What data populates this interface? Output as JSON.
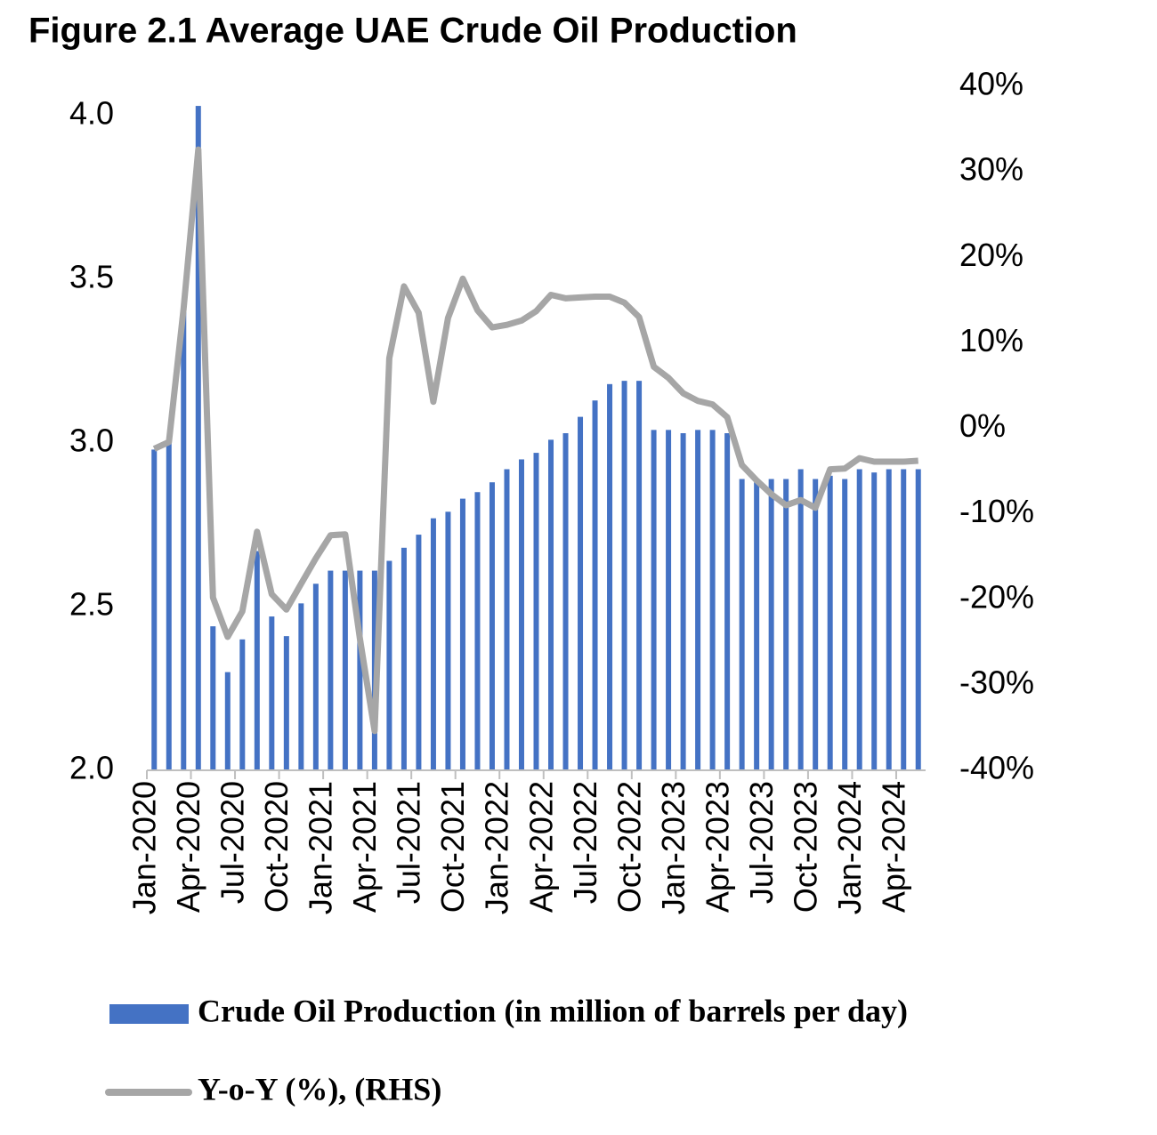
{
  "chart_data": {
    "type": "combo",
    "title": "Figure 2.1 Average UAE Crude Oil Production",
    "categories": [
      "Jan-2020",
      null,
      null,
      "Apr-2020",
      null,
      null,
      "Jul-2020",
      null,
      null,
      "Oct-2020",
      null,
      null,
      "Jan-2021",
      null,
      null,
      "Apr-2021",
      null,
      null,
      "Jul-2021",
      null,
      null,
      "Oct-2021",
      null,
      null,
      "Jan-2022",
      null,
      null,
      "Apr-2022",
      null,
      null,
      "Jul-2022",
      null,
      null,
      "Oct-2022",
      null,
      null,
      "Jan-2023",
      null,
      null,
      "Apr-2023",
      null,
      null,
      "Jul-2023",
      null,
      null,
      "Oct-2023",
      null,
      null,
      "Jan-2024",
      null,
      null,
      "Apr-2024",
      null
    ],
    "series": [
      {
        "name": "Crude Oil Production (in million of barrels per day)",
        "type": "bar",
        "color": "#4472c4",
        "values": [
          2.98,
          3.0,
          3.4,
          4.03,
          2.44,
          2.3,
          2.4,
          2.67,
          2.47,
          2.41,
          2.51,
          2.57,
          2.61,
          2.61,
          2.61,
          2.61,
          2.64,
          2.68,
          2.72,
          2.77,
          2.79,
          2.83,
          2.85,
          2.88,
          2.92,
          2.95,
          2.97,
          3.01,
          3.03,
          3.08,
          3.13,
          3.18,
          3.19,
          3.19,
          3.04,
          3.04,
          3.03,
          3.04,
          3.04,
          3.03,
          2.89,
          2.88,
          2.89,
          2.89,
          2.92,
          2.89,
          2.9,
          2.89,
          2.92,
          2.91,
          2.92,
          2.92,
          2.92
        ]
      },
      {
        "name": "Y-o-Y (%), (RHS)",
        "type": "line",
        "axis": "y2",
        "color": "#a6a6a6",
        "values": [
          -2.4,
          -1.6,
          14,
          32.6,
          -19.8,
          -24.4,
          -21.4,
          -12.1,
          -19.4,
          -21.2,
          -18.2,
          -15.2,
          -12.5,
          -12.4,
          -24.6,
          -35.4,
          8.2,
          16.6,
          13.5,
          3.1,
          12.9,
          17.5,
          13.8,
          11.8,
          12.1,
          12.6,
          13.7,
          15.6,
          15.2,
          15.3,
          15.4,
          15.4,
          14.7,
          13.0,
          7.2,
          5.9,
          4.1,
          3.2,
          2.8,
          1.3,
          -4.3,
          -6.1,
          -7.7,
          -9.0,
          -8.4,
          -9.3,
          -4.8,
          -4.7,
          -3.5,
          -3.9,
          -3.9,
          -3.9,
          -3.8
        ]
      }
    ],
    "ylim": [
      2,
      4.09
    ],
    "yticks": [
      {
        "value": 2,
        "label": "2.0"
      },
      {
        "value": 2.5,
        "label": "2.5"
      },
      {
        "value": 3,
        "label": "3.0"
      },
      {
        "value": 3.5,
        "label": "3.5"
      },
      {
        "value": 4,
        "label": "4.0"
      }
    ],
    "y2lim": [
      -40,
      40
    ],
    "y2ticks": [
      {
        "value": -40,
        "label": "-40%"
      },
      {
        "value": -30,
        "label": "-30%"
      },
      {
        "value": -20,
        "label": "-20%"
      },
      {
        "value": -10,
        "label": "-10%"
      },
      {
        "value": 0,
        "label": "0%"
      },
      {
        "value": 10,
        "label": "10%"
      },
      {
        "value": 20,
        "label": "20%"
      },
      {
        "value": 30,
        "label": "30%"
      },
      {
        "value": 40,
        "label": "40%"
      }
    ],
    "grid": false
  }
}
